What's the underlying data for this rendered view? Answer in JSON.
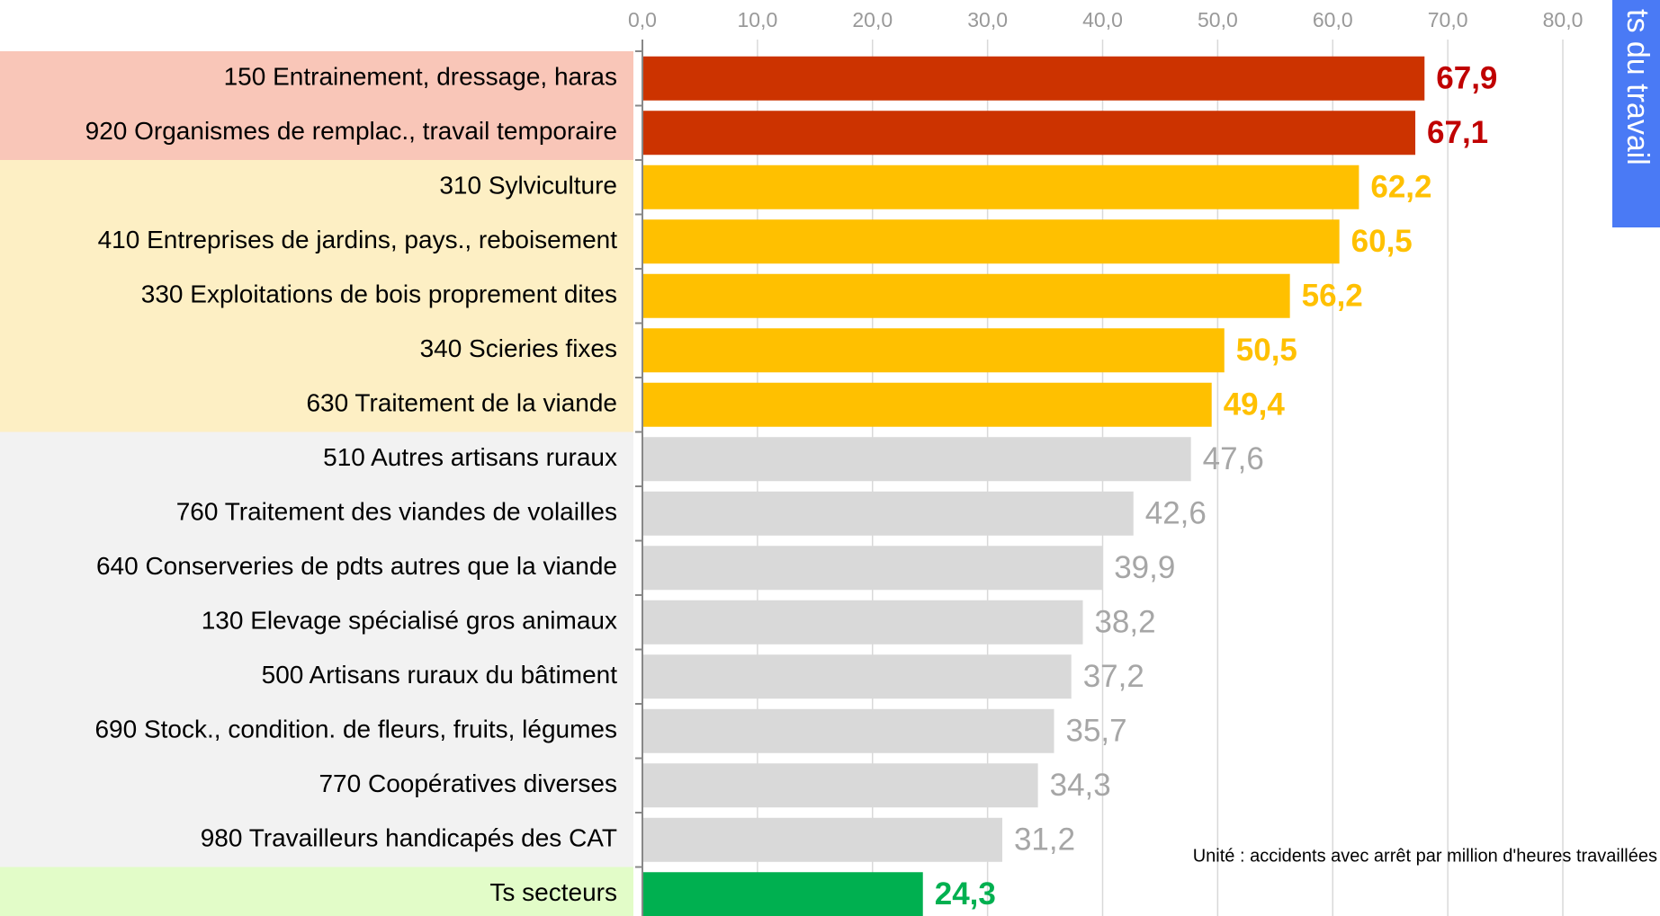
{
  "chart_data": {
    "type": "barh",
    "categories": [
      "150 Entrainement, dressage, haras",
      "920 Organismes de remplac., travail temporaire",
      "310 Sylviculture",
      "410 Entreprises de jardins, pays., reboisement",
      "330 Exploitations de bois proprement dites",
      "340 Scieries fixes",
      "630 Traitement de la viande",
      "510 Autres artisans ruraux",
      "760 Traitement des viandes de volailles",
      "640 Conserveries de pdts autres que la viande",
      "130 Elevage spécialisé gros animaux",
      "500 Artisans ruraux du bâtiment",
      "690 Stock., condition. de fleurs, fruits, légumes",
      "770 Coopératives diverses",
      "980 Travailleurs handicapés des CAT",
      "Ts secteurs"
    ],
    "values": [
      67.9,
      67.1,
      62.2,
      60.5,
      56.2,
      50.5,
      49.4,
      47.6,
      42.6,
      39.9,
      38.2,
      37.2,
      35.7,
      34.3,
      31.2,
      24.3
    ],
    "value_labels": [
      "67,9",
      "67,1",
      "62,2",
      "60,5",
      "56,2",
      "50,5",
      "49,4",
      "47,6",
      "42,6",
      "39,9",
      "38,2",
      "37,2",
      "35,7",
      "34,3",
      "31,2",
      "24,3"
    ],
    "colors": [
      "#cc3300",
      "#cc3300",
      "#ffc000",
      "#ffc000",
      "#ffc000",
      "#ffc000",
      "#ffc000",
      "#d9d9d9",
      "#d9d9d9",
      "#d9d9d9",
      "#d9d9d9",
      "#d9d9d9",
      "#d9d9d9",
      "#d9d9d9",
      "#d9d9d9",
      "#00b050"
    ],
    "value_label_colors": [
      "#c00000",
      "#c00000",
      "#ffc000",
      "#ffc000",
      "#ffc000",
      "#ffc000",
      "#ffc000",
      "#a6a6a6",
      "#a6a6a6",
      "#a6a6a6",
      "#a6a6a6",
      "#a6a6a6",
      "#a6a6a6",
      "#a6a6a6",
      "#a6a6a6",
      "#00b050"
    ],
    "value_label_weights": [
      "bold",
      "bold",
      "bold",
      "bold",
      "bold",
      "bold",
      "bold",
      "normal",
      "normal",
      "normal",
      "normal",
      "normal",
      "normal",
      "normal",
      "normal",
      "bold"
    ],
    "category_band_colors": [
      "#f9c6b8",
      "#f9c6b8",
      "#fdefc4",
      "#fdefc4",
      "#fdefc4",
      "#fdefc4",
      "#fdefc4",
      "#f2f2f2",
      "#f2f2f2",
      "#f2f2f2",
      "#f2f2f2",
      "#f2f2f2",
      "#f2f2f2",
      "#f2f2f2",
      "#f2f2f2",
      "#e2fcc8"
    ],
    "xlim": [
      0,
      80
    ],
    "xticks": [
      {
        "value": 0,
        "label": "0,0"
      },
      {
        "value": 10,
        "label": "10,0"
      },
      {
        "value": 20,
        "label": "20,0"
      },
      {
        "value": 30,
        "label": "30,0"
      },
      {
        "value": 40,
        "label": "40,0"
      },
      {
        "value": 50,
        "label": "50,0"
      },
      {
        "value": 60,
        "label": "60,0"
      },
      {
        "value": 70,
        "label": "70,0"
      },
      {
        "value": 80,
        "label": "80,0"
      }
    ],
    "grid": true,
    "note": "Unité : accidents avec arrêt par million d'heures travaillées",
    "side_tab": "ts du travail"
  }
}
